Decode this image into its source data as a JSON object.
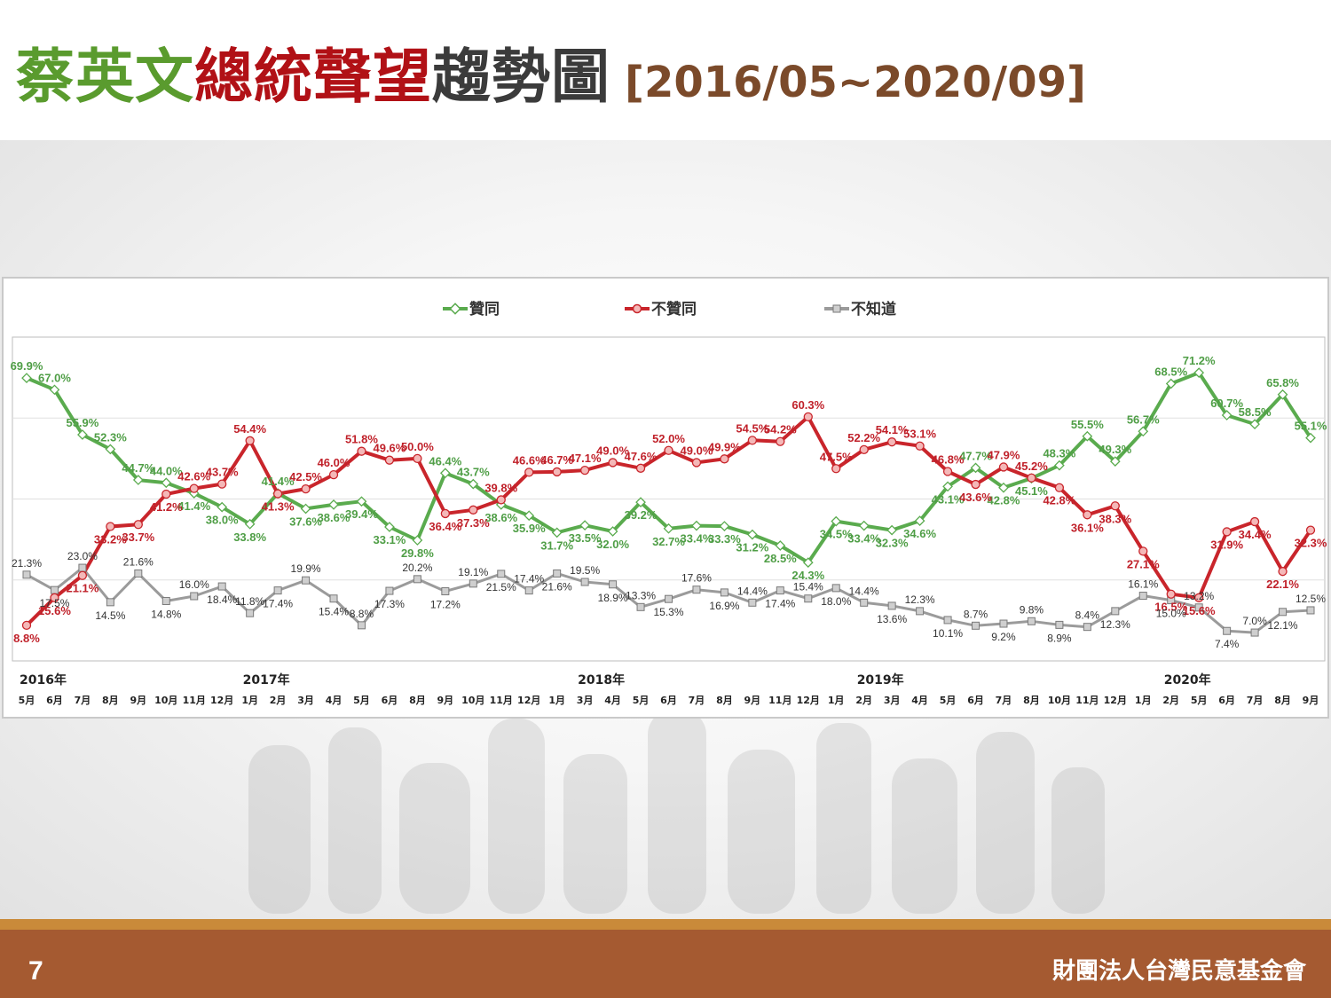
{
  "title": {
    "part1": "蔡英文",
    "part2": "總統聲望",
    "part3": "趨勢圖",
    "range": "[2016/05~2020/09]"
  },
  "colors": {
    "title_green": "#5a9b2e",
    "title_red": "#b11116",
    "title_dark": "#3b3b3b",
    "title_brown": "#7b4a2a",
    "approve": "#5aab4e",
    "disapprove": "#c9252b",
    "unknown": "#9b9b9b",
    "footer": "#a55a31"
  },
  "footer": {
    "page_number": "7",
    "organization": "財團法人台灣民意基金會"
  },
  "chart_data": {
    "type": "line",
    "title": "",
    "xlabel": "",
    "ylabel": "",
    "ylim": [
      0,
      80
    ],
    "grid": true,
    "legend_position": "top",
    "years": [
      {
        "label": "2016年",
        "index": 0
      },
      {
        "label": "2017年",
        "index": 8
      },
      {
        "label": "2018年",
        "index": 20
      },
      {
        "label": "2019年",
        "index": 30
      },
      {
        "label": "2020年",
        "index": 41
      }
    ],
    "categories": [
      "5月",
      "6月",
      "7月",
      "8月",
      "9月",
      "10月",
      "11月",
      "12月",
      "1月",
      "2月",
      "3月",
      "4月",
      "5月",
      "6月",
      "8月",
      "9月",
      "10月",
      "11月",
      "12月",
      "1月",
      "3月",
      "4月",
      "5月",
      "6月",
      "7月",
      "8月",
      "9月",
      "11月",
      "12月",
      "1月",
      "2月",
      "3月",
      "4月",
      "5月",
      "6月",
      "7月",
      "8月",
      "10月",
      "11月",
      "12月",
      "1月",
      "2月",
      "5月",
      "6月",
      "7月",
      "8月",
      "9月"
    ],
    "series": [
      {
        "name": "贊同",
        "color": "#5aab4e",
        "values": [
          69.9,
          67.0,
          55.9,
          52.3,
          44.7,
          44.0,
          41.4,
          38.0,
          33.8,
          41.4,
          37.6,
          38.6,
          39.4,
          33.1,
          29.8,
          46.4,
          43.7,
          38.6,
          35.9,
          31.7,
          33.5,
          32.0,
          39.2,
          32.7,
          33.4,
          33.3,
          31.2,
          28.5,
          24.3,
          34.5,
          33.4,
          32.3,
          34.6,
          43.1,
          47.7,
          42.8,
          45.1,
          48.3,
          55.5,
          49.3,
          56.7,
          68.5,
          71.2,
          60.7,
          58.5,
          65.8,
          55.1
        ]
      },
      {
        "name": "不贊同",
        "color": "#c9252b",
        "values": [
          8.8,
          15.6,
          21.1,
          33.2,
          33.7,
          41.2,
          42.6,
          43.7,
          54.4,
          41.3,
          42.5,
          46.0,
          51.8,
          49.6,
          50.0,
          36.4,
          37.3,
          39.8,
          46.6,
          46.7,
          47.1,
          49.0,
          47.6,
          52.0,
          49.0,
          49.9,
          54.5,
          54.2,
          60.3,
          47.5,
          52.2,
          54.1,
          53.1,
          46.8,
          43.6,
          47.9,
          45.2,
          42.8,
          36.1,
          38.3,
          27.1,
          16.5,
          15.6,
          31.9,
          34.4,
          22.1,
          32.3
        ]
      },
      {
        "name": "不知道",
        "color": "#9b9b9b",
        "values": [
          21.3,
          17.5,
          23.0,
          14.5,
          21.6,
          14.8,
          16.0,
          18.4,
          11.8,
          17.4,
          19.9,
          15.4,
          8.8,
          17.3,
          20.2,
          17.2,
          19.1,
          21.5,
          17.4,
          21.6,
          19.5,
          18.9,
          13.3,
          15.3,
          17.6,
          16.9,
          14.4,
          17.4,
          15.4,
          18.0,
          14.4,
          13.6,
          12.3,
          10.1,
          8.7,
          9.2,
          9.8,
          8.9,
          8.4,
          12.3,
          16.1,
          15.0,
          13.2,
          7.4,
          7.0,
          12.1,
          12.5
        ]
      }
    ]
  }
}
